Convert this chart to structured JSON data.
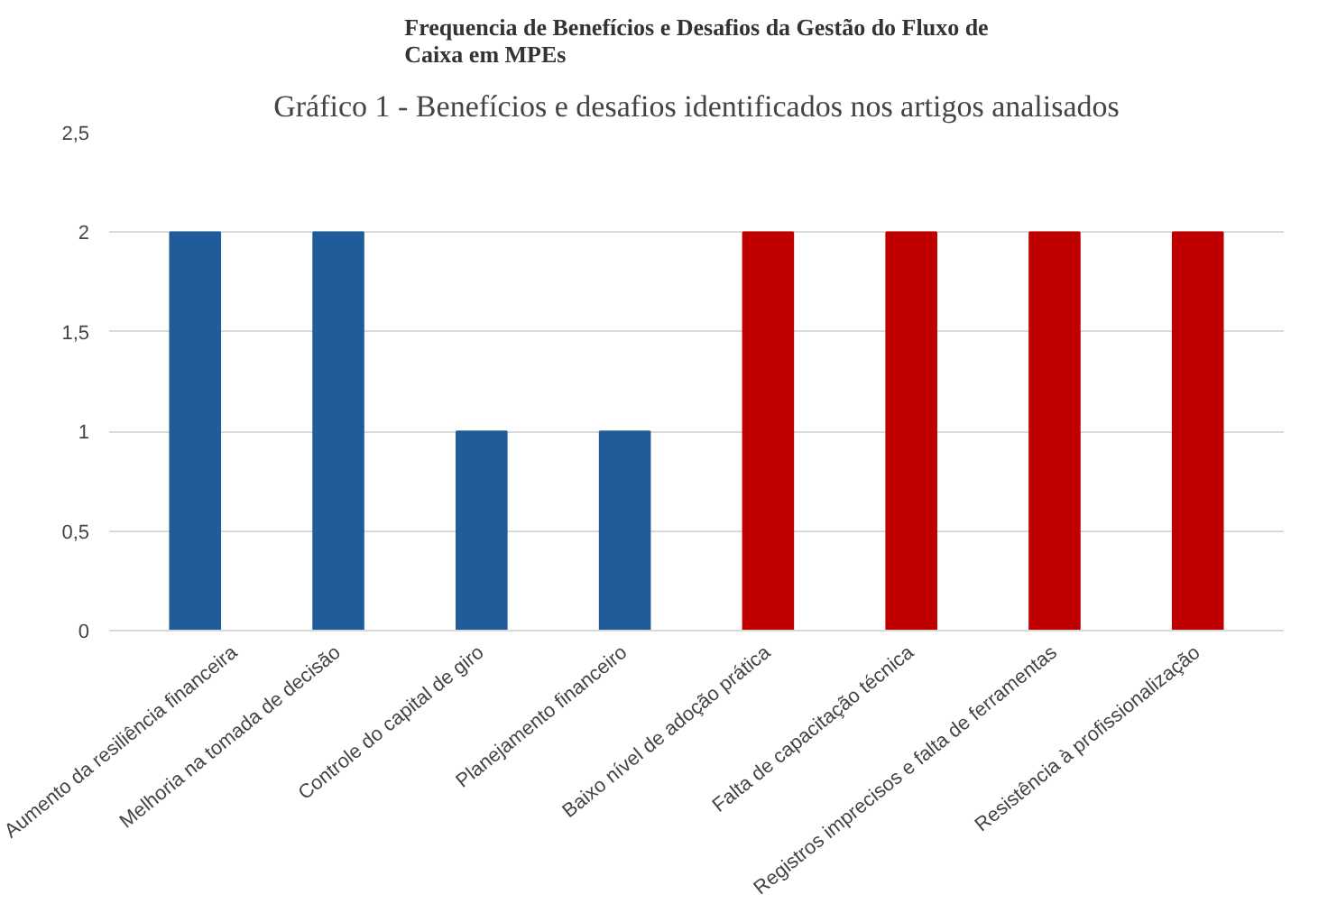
{
  "chart_data": {
    "type": "bar",
    "title": "Frequencia de Benefícios e Desafios da Gestão do Fluxo de Caixa em MPEs",
    "annotations": [
      "Gráfico 1 - Benefícios e desafios identificados nos artigos analisados"
    ],
    "categories": [
      "Aumento da resiliência financeira",
      "Melhoria na tomada de decisão",
      "Controle do capital de giro",
      "Planejamento financeiro",
      "Baixo nível de adoção prática",
      "Falta de capacitação técnica",
      "Registros imprecisos e falta de ferramentas",
      "Resistência à profissionalização"
    ],
    "values": [
      2,
      2,
      1,
      1,
      2,
      2,
      2,
      2
    ],
    "colors": [
      "#1f5c99",
      "#1f5c99",
      "#1f5c99",
      "#1f5c99",
      "#c00000",
      "#c00000",
      "#c00000",
      "#c00000"
    ],
    "ylim": [
      0,
      2.5
    ],
    "yticks": [
      {
        "value": 0,
        "label": "0"
      },
      {
        "value": 0.5,
        "label": "0,5"
      },
      {
        "value": 1,
        "label": "1"
      },
      {
        "value": 1.5,
        "label": "1,5"
      },
      {
        "value": 2,
        "label": "2"
      },
      {
        "value": 2.5,
        "label": "2,5"
      }
    ],
    "grid": "y"
  }
}
